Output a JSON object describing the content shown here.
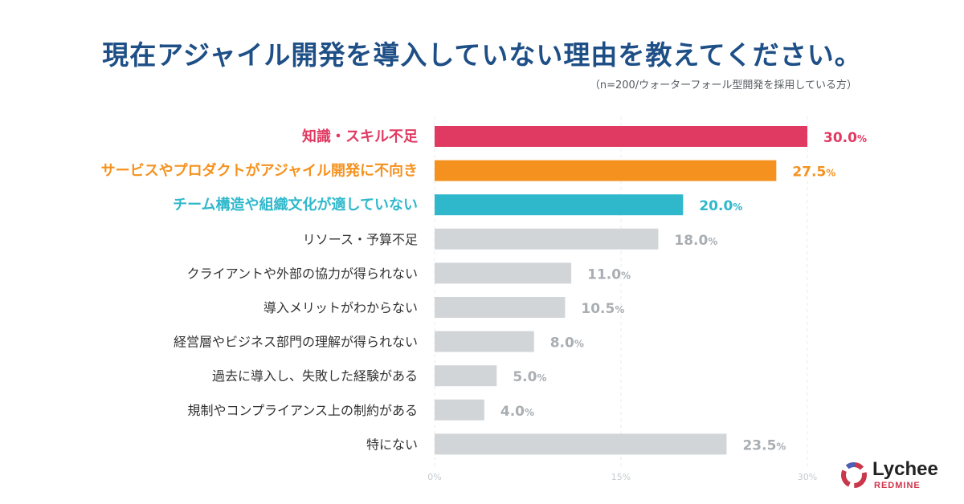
{
  "chart_data": {
    "type": "bar",
    "orientation": "horizontal",
    "title": "現在アジャイル開発を導入していない理由を教えてください。",
    "subtitle": "（n=200/ウォーターフォール型開発を採用している方）",
    "categories": [
      "知識・スキル不足",
      "サービスやプロダクトがアジャイル開発に不向き",
      "チーム構造や組織文化が適していない",
      "リソース・予算不足",
      "クライアントや外部の協力が得られない",
      "導入メリットがわからない",
      "経営層やビジネス部門の理解が得られない",
      "過去に導入し、失敗した経験がある",
      "規制やコンプライアンス上の制約がある",
      "特にない"
    ],
    "values": [
      30.0,
      27.5,
      20.0,
      18.0,
      11.0,
      10.5,
      8.0,
      5.0,
      4.0,
      23.5
    ],
    "value_labels": [
      "30.0",
      "27.5",
      "20.0",
      "18.0",
      "11.0",
      "10.5",
      "8.0",
      "5.0",
      "4.0",
      "23.5"
    ],
    "unit": "%",
    "colors": [
      "#e03a62",
      "#f5921f",
      "#2fb8cc",
      "#d2d5d8",
      "#d2d5d8",
      "#d2d5d8",
      "#d2d5d8",
      "#d2d5d8",
      "#d2d5d8",
      "#d2d5d8"
    ],
    "label_colors": [
      "#e03a62",
      "#f5921f",
      "#2fb8cc",
      "#333333",
      "#333333",
      "#333333",
      "#333333",
      "#333333",
      "#333333",
      "#333333"
    ],
    "value_colors": [
      "#e03a62",
      "#f5921f",
      "#2fb8cc",
      "#a9aeb3",
      "#a9aeb3",
      "#a9aeb3",
      "#a9aeb3",
      "#a9aeb3",
      "#a9aeb3",
      "#a9aeb3"
    ],
    "highlight_count": 3,
    "xlim": [
      0,
      30
    ],
    "xticks": [
      0,
      15,
      30
    ],
    "xtick_labels": [
      "0%",
      "15%",
      "30%"
    ],
    "grid": true
  },
  "logo": {
    "name": "Lychee",
    "sub": "REDMINE"
  }
}
